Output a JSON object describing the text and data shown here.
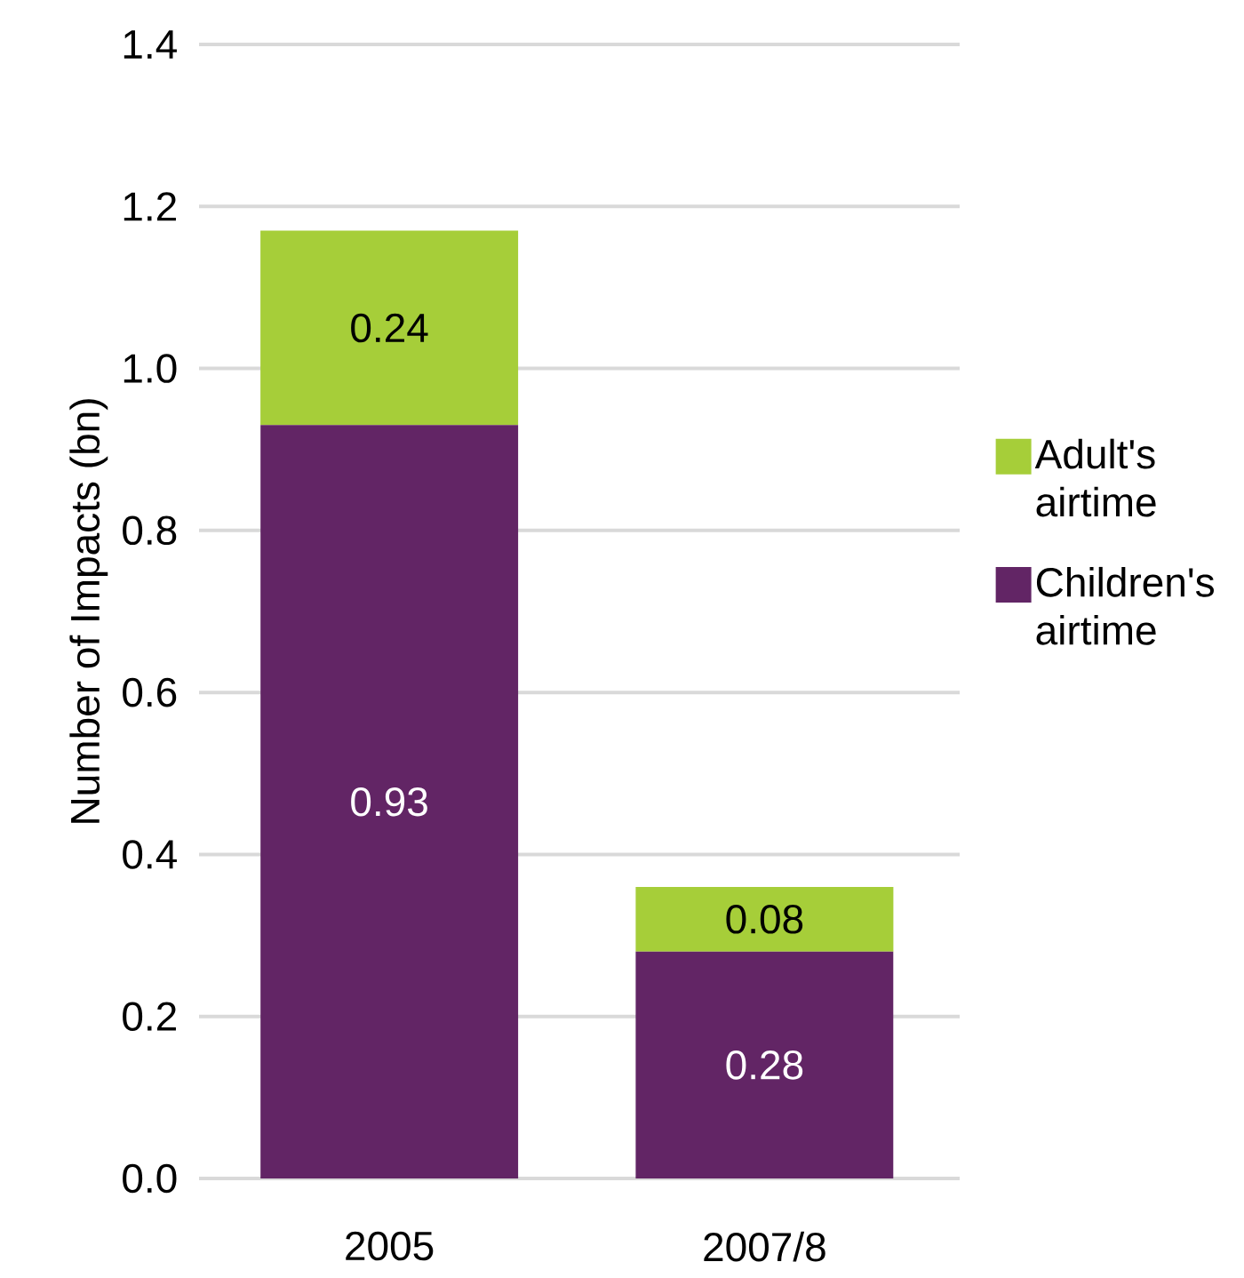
{
  "chart_data": {
    "type": "bar",
    "stacked": true,
    "ylabel": "Number of Impacts (bn)",
    "categories": [
      "2005",
      "2007/8"
    ],
    "series": [
      {
        "name": "Children's airtime",
        "color": "#622565",
        "values": [
          0.93,
          0.28
        ],
        "value_labels": [
          "0.93",
          "0.28"
        ]
      },
      {
        "name": "Adult's airtime",
        "color": "#a6ce39",
        "values": [
          0.24,
          0.08
        ],
        "value_labels": [
          "0.24",
          "0.08"
        ]
      }
    ],
    "ylim": [
      0,
      1.4
    ],
    "yticks": [
      {
        "value": 0,
        "label": "0.0"
      },
      {
        "value": 0.2,
        "label": "0.2"
      },
      {
        "value": 0.4,
        "label": "0.4"
      },
      {
        "value": 0.6,
        "label": "0.6"
      },
      {
        "value": 0.8,
        "label": "0.8"
      },
      {
        "value": 1.0,
        "label": "1.0"
      },
      {
        "value": 1.2,
        "label": "1.2"
      },
      {
        "value": 1.4,
        "label": "1.4"
      }
    ],
    "grid": "y",
    "legend": "right"
  }
}
